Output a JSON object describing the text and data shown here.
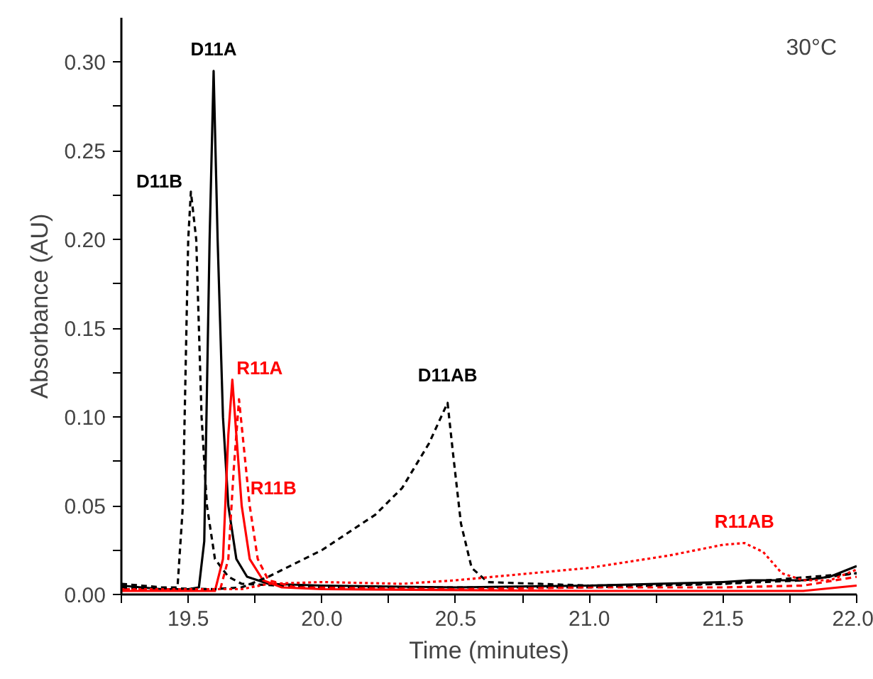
{
  "chart_data": {
    "type": "line",
    "xlabel": "Time (minutes)",
    "ylabel": "Absorbance (AU)",
    "annotations": [
      "30°C"
    ],
    "xlim": [
      19.25,
      22.0
    ],
    "ylim": [
      0,
      0.325
    ],
    "xticks": [
      {
        "value": 19.25,
        "label": null
      },
      {
        "value": 19.5,
        "label": "19.5"
      },
      {
        "value": 19.75,
        "label": null
      },
      {
        "value": 20.0,
        "label": "20.0"
      },
      {
        "value": 20.25,
        "label": null
      },
      {
        "value": 20.5,
        "label": "20.5"
      },
      {
        "value": 20.75,
        "label": null
      },
      {
        "value": 21.0,
        "label": "21.0"
      },
      {
        "value": 21.25,
        "label": null
      },
      {
        "value": 21.5,
        "label": "21.5"
      },
      {
        "value": 21.75,
        "label": null
      },
      {
        "value": 22.0,
        "label": "22.0"
      }
    ],
    "yticks": [
      {
        "value": 0,
        "label": "0.00"
      },
      {
        "value": 0.025,
        "label": null
      },
      {
        "value": 0.05,
        "label": "0.05"
      },
      {
        "value": 0.075,
        "label": null
      },
      {
        "value": 0.1,
        "label": "0.10"
      },
      {
        "value": 0.125,
        "label": null
      },
      {
        "value": 0.15,
        "label": "0.15"
      },
      {
        "value": 0.175,
        "label": null
      },
      {
        "value": 0.2,
        "label": "0.20"
      },
      {
        "value": 0.225,
        "label": null
      },
      {
        "value": 0.25,
        "label": "0.25"
      },
      {
        "value": 0.275,
        "label": null
      },
      {
        "value": 0.3,
        "label": "0.30"
      }
    ],
    "grid": false,
    "marker": "none",
    "series": [
      {
        "name": "D11A",
        "color": "#000000",
        "line_style": "solid",
        "x": [
          19.25,
          19.4,
          19.5,
          19.54,
          19.56,
          19.58,
          19.595,
          19.61,
          19.63,
          19.65,
          19.68,
          19.72,
          19.8,
          20.0,
          20.5,
          21.0,
          21.5,
          21.6,
          21.8,
          21.9,
          22.0
        ],
        "values": [
          0.005,
          0.003,
          0.003,
          0.004,
          0.03,
          0.2,
          0.295,
          0.2,
          0.1,
          0.05,
          0.02,
          0.01,
          0.006,
          0.005,
          0.004,
          0.005,
          0.007,
          0.008,
          0.008,
          0.01,
          0.016
        ]
      },
      {
        "name": "D11B",
        "color": "#000000",
        "line_style": "dashed",
        "x": [
          19.25,
          19.4,
          19.46,
          19.48,
          19.5,
          19.51,
          19.53,
          19.55,
          19.57,
          19.6,
          19.65,
          19.7,
          20.0,
          21.0,
          21.5,
          21.8,
          22.0
        ],
        "values": [
          0.006,
          0.004,
          0.004,
          0.05,
          0.2,
          0.227,
          0.2,
          0.1,
          0.05,
          0.02,
          0.01,
          0.006,
          0.004,
          0.004,
          0.006,
          0.008,
          0.012
        ]
      },
      {
        "name": "R11A",
        "color": "#ff0000",
        "line_style": "solid",
        "x": [
          19.25,
          19.6,
          19.63,
          19.65,
          19.665,
          19.68,
          19.7,
          19.73,
          19.78,
          19.85,
          20.0,
          21.0,
          21.5,
          21.8,
          22.0
        ],
        "values": [
          0.002,
          0.002,
          0.02,
          0.09,
          0.121,
          0.09,
          0.05,
          0.02,
          0.008,
          0.004,
          0.003,
          0.002,
          0.002,
          0.002,
          0.005
        ]
      },
      {
        "name": "R11B",
        "color": "#ff0000",
        "line_style": "dashed",
        "x": [
          19.25,
          19.62,
          19.65,
          19.67,
          19.69,
          19.71,
          19.73,
          19.76,
          19.8,
          19.9,
          20.5,
          21.0,
          21.5,
          21.8,
          22.0
        ],
        "values": [
          0.003,
          0.003,
          0.02,
          0.07,
          0.11,
          0.08,
          0.05,
          0.02,
          0.008,
          0.004,
          0.003,
          0.004,
          0.004,
          0.005,
          0.01
        ]
      },
      {
        "name": "D11AB",
        "color": "#000000",
        "line_style": "dashed",
        "x": [
          19.25,
          19.6,
          19.7,
          19.8,
          20.0,
          20.2,
          20.3,
          20.4,
          20.47,
          20.49,
          20.52,
          20.56,
          20.62,
          21.0,
          21.5,
          22.0
        ],
        "values": [
          0.004,
          0.003,
          0.004,
          0.01,
          0.025,
          0.045,
          0.06,
          0.085,
          0.108,
          0.08,
          0.04,
          0.015,
          0.007,
          0.005,
          0.006,
          0.012
        ]
      },
      {
        "name": "R11AB",
        "color": "#ff0000",
        "line_style": "dotted",
        "x": [
          19.25,
          19.7,
          19.8,
          20.0,
          20.3,
          20.5,
          21.0,
          21.3,
          21.5,
          21.58,
          21.65,
          21.72,
          21.8,
          21.9,
          22.0
        ],
        "values": [
          0.003,
          0.003,
          0.006,
          0.007,
          0.006,
          0.008,
          0.015,
          0.022,
          0.028,
          0.029,
          0.024,
          0.012,
          0.008,
          0.008,
          0.014
        ]
      }
    ]
  }
}
